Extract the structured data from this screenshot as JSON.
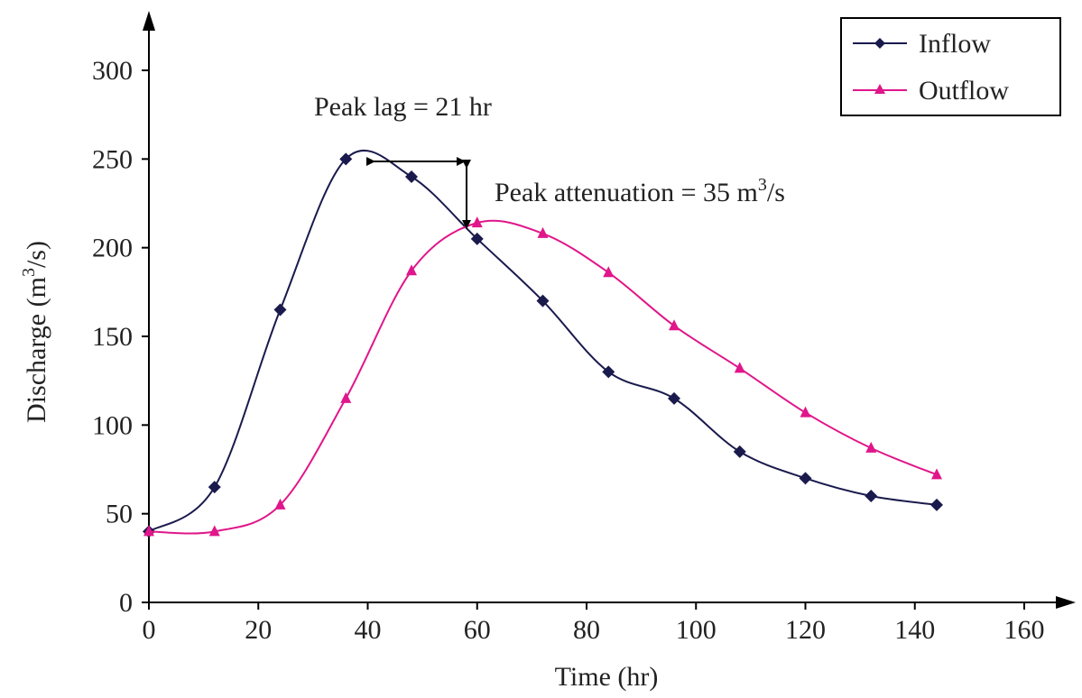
{
  "chart_data": {
    "type": "line",
    "xlabel": "Time (hr)",
    "ylabel_main": "Discharge (m",
    "ylabel_sup": "3",
    "ylabel_end": "/s)",
    "xlim": [
      0,
      160
    ],
    "ylim": [
      0,
      300
    ],
    "x_ticks": [
      0,
      20,
      40,
      60,
      80,
      100,
      120,
      140,
      160
    ],
    "y_ticks": [
      0,
      50,
      100,
      150,
      200,
      250,
      300
    ],
    "grid": false,
    "legend_position": "top-right",
    "series": [
      {
        "name": "Inflow",
        "marker": "diamond",
        "color": "#1a1a4d",
        "x": [
          0,
          12,
          24,
          36,
          48,
          60,
          72,
          84,
          96,
          108,
          120,
          132,
          144
        ],
        "y": [
          40,
          65,
          165,
          250,
          240,
          205,
          170,
          130,
          115,
          85,
          70,
          60,
          55
        ]
      },
      {
        "name": "Outflow",
        "marker": "triangle",
        "color": "#e0168a",
        "x": [
          0,
          12,
          24,
          36,
          48,
          60,
          72,
          84,
          96,
          108,
          120,
          132,
          144
        ],
        "y": [
          40,
          40,
          55,
          115,
          187,
          214,
          208,
          186,
          156,
          132,
          107,
          87,
          72
        ]
      }
    ],
    "annotations": {
      "peak_lag": "Peak lag = 21 hr",
      "peak_attenuation_main": "Peak attenuation = 35 m",
      "peak_attenuation_sup": "3",
      "peak_attenuation_end": "/s"
    }
  }
}
